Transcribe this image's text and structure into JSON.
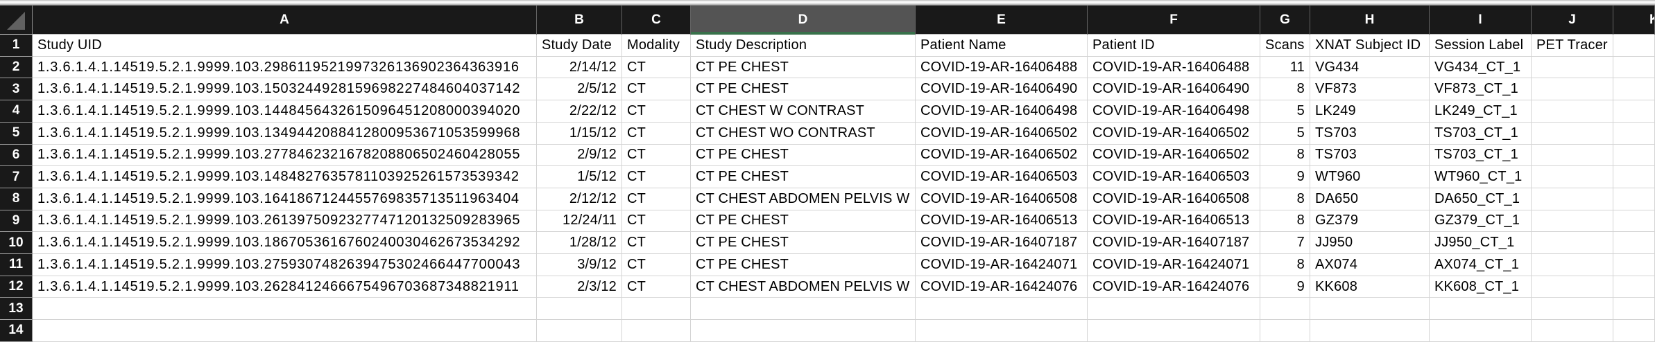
{
  "spreadsheet": {
    "column_letters": [
      "A",
      "B",
      "C",
      "D",
      "E",
      "F",
      "G",
      "H",
      "I",
      "J",
      "K"
    ],
    "selected_column_letter": "D",
    "visible_row_numbers": [
      "1",
      "2",
      "3",
      "4",
      "5",
      "6",
      "7",
      "8",
      "9",
      "10",
      "11",
      "12",
      "13",
      "14"
    ],
    "column_titles": [
      "Study UID",
      "Study Date",
      "Modality",
      "Study Description",
      "Patient Name",
      "Patient ID",
      "Scans",
      "XNAT Subject ID",
      "Session Label",
      "PET Tracer"
    ],
    "records": [
      {
        "study_uid": "1.3.6.1.4.1.14519.5.2.1.9999.103.2986119521997326136902364363916",
        "study_date": "2/14/12",
        "modality": "CT",
        "study_description": "CT PE CHEST",
        "patient_name": "COVID-19-AR-16406488",
        "patient_id": "COVID-19-AR-16406488",
        "scans": "11",
        "xnat_subject_id": "VG434",
        "session_label": "VG434_CT_1",
        "pet_tracer": ""
      },
      {
        "study_uid": "1.3.6.1.4.1.14519.5.2.1.9999.103.1503244928159698227484604037142",
        "study_date": "2/5/12",
        "modality": "CT",
        "study_description": "CT PE CHEST",
        "patient_name": "COVID-19-AR-16406490",
        "patient_id": "COVID-19-AR-16406490",
        "scans": "8",
        "xnat_subject_id": "VF873",
        "session_label": "VF873_CT_1",
        "pet_tracer": ""
      },
      {
        "study_uid": "1.3.6.1.4.1.14519.5.2.1.9999.103.1448456432615096451208000394020",
        "study_date": "2/22/12",
        "modality": "CT",
        "study_description": "CT CHEST W CONTRAST",
        "patient_name": "COVID-19-AR-16406498",
        "patient_id": "COVID-19-AR-16406498",
        "scans": "5",
        "xnat_subject_id": "LK249",
        "session_label": "LK249_CT_1",
        "pet_tracer": ""
      },
      {
        "study_uid": "1.3.6.1.4.1.14519.5.2.1.9999.103.1349442088412800953671053599968",
        "study_date": "1/15/12",
        "modality": "CT",
        "study_description": "CT CHEST WO CONTRAST",
        "patient_name": "COVID-19-AR-16406502",
        "patient_id": "COVID-19-AR-16406502",
        "scans": "5",
        "xnat_subject_id": "TS703",
        "session_label": "TS703_CT_1",
        "pet_tracer": ""
      },
      {
        "study_uid": "1.3.6.1.4.1.14519.5.2.1.9999.103.2778462321678208806502460428055",
        "study_date": "2/9/12",
        "modality": "CT",
        "study_description": "CT PE CHEST",
        "patient_name": "COVID-19-AR-16406502",
        "patient_id": "COVID-19-AR-16406502",
        "scans": "8",
        "xnat_subject_id": "TS703",
        "session_label": "TS703_CT_1",
        "pet_tracer": ""
      },
      {
        "study_uid": "1.3.6.1.4.1.14519.5.2.1.9999.103.1484827635781103925261573539342",
        "study_date": "1/5/12",
        "modality": "CT",
        "study_description": "CT PE CHEST",
        "patient_name": "COVID-19-AR-16406503",
        "patient_id": "COVID-19-AR-16406503",
        "scans": "9",
        "xnat_subject_id": "WT960",
        "session_label": "WT960_CT_1",
        "pet_tracer": ""
      },
      {
        "study_uid": "1.3.6.1.4.1.14519.5.2.1.9999.103.1641867124455769835713511963404",
        "study_date": "2/12/12",
        "modality": "CT",
        "study_description": "CT CHEST ABDOMEN PELVIS W",
        "patient_name": "COVID-19-AR-16406508",
        "patient_id": "COVID-19-AR-16406508",
        "scans": "8",
        "xnat_subject_id": "DA650",
        "session_label": "DA650_CT_1",
        "pet_tracer": ""
      },
      {
        "study_uid": "1.3.6.1.4.1.14519.5.2.1.9999.103.2613975092327747120132509283965",
        "study_date": "12/24/11",
        "modality": "CT",
        "study_description": "CT PE CHEST",
        "patient_name": "COVID-19-AR-16406513",
        "patient_id": "COVID-19-AR-16406513",
        "scans": "8",
        "xnat_subject_id": "GZ379",
        "session_label": "GZ379_CT_1",
        "pet_tracer": ""
      },
      {
        "study_uid": "1.3.6.1.4.1.14519.5.2.1.9999.103.1867053616760240030462673534292",
        "study_date": "1/28/12",
        "modality": "CT",
        "study_description": "CT PE CHEST",
        "patient_name": "COVID-19-AR-16407187",
        "patient_id": "COVID-19-AR-16407187",
        "scans": "7",
        "xnat_subject_id": "JJ950",
        "session_label": "JJ950_CT_1",
        "pet_tracer": ""
      },
      {
        "study_uid": "1.3.6.1.4.1.14519.5.2.1.9999.103.2759307482639475302466447700043",
        "study_date": "3/9/12",
        "modality": "CT",
        "study_description": "CT PE CHEST",
        "patient_name": "COVID-19-AR-16424071",
        "patient_id": "COVID-19-AR-16424071",
        "scans": "8",
        "xnat_subject_id": "AX074",
        "session_label": "AX074_CT_1",
        "pet_tracer": ""
      },
      {
        "study_uid": "1.3.6.1.4.1.14519.5.2.1.9999.103.2628412466675496703687348821911",
        "study_date": "2/3/12",
        "modality": "CT",
        "study_description": "CT CHEST ABDOMEN PELVIS W",
        "patient_name": "COVID-19-AR-16424076",
        "patient_id": "COVID-19-AR-16424076",
        "scans": "9",
        "xnat_subject_id": "KK608",
        "session_label": "KK608_CT_1",
        "pet_tracer": ""
      }
    ],
    "colors": {
      "header_bg": "#191919",
      "selected_header_bg": "#545454",
      "selection_accent_green": "#38714a",
      "gridline": "#d4d4d4",
      "cell_bg": "#ffffff",
      "header_text": "#ffffff",
      "cell_text": "#000000"
    }
  }
}
